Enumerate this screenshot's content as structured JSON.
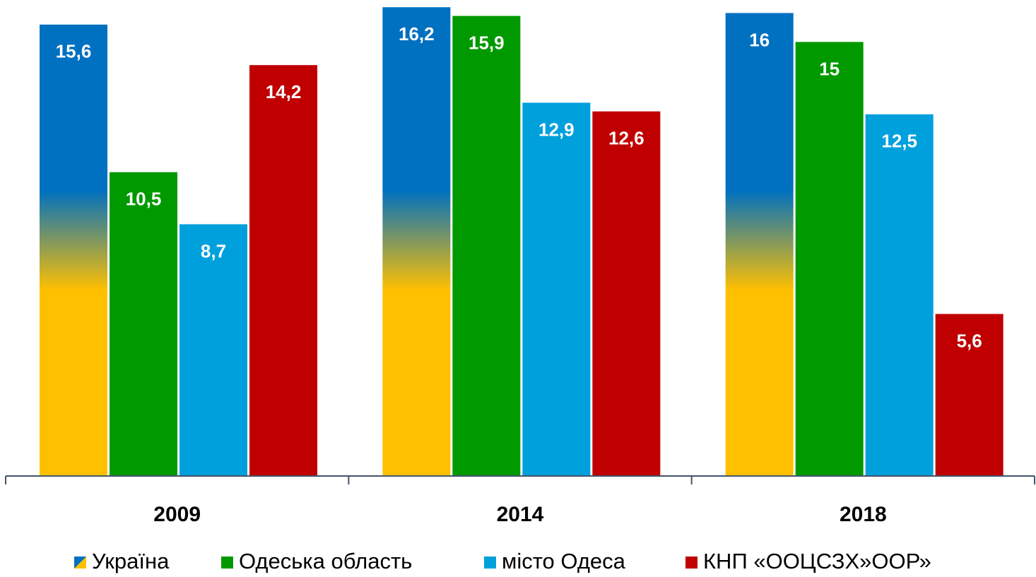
{
  "chart_data": {
    "type": "bar",
    "categories": [
      "2009",
      "2014",
      "2018"
    ],
    "ylim": [
      0,
      16.45
    ],
    "series": [
      {
        "name": "Україна",
        "color": "#0070c0",
        "gradient_color": "#ffc000",
        "values": [
          15.6,
          16.2,
          16
        ],
        "value_labels": [
          "15,6",
          "16,2",
          "16"
        ]
      },
      {
        "name": "Одеська область",
        "color": "#009900",
        "values": [
          10.5,
          15.9,
          15
        ],
        "value_labels": [
          "10,5",
          "15,9",
          "15"
        ]
      },
      {
        "name": "місто Одеса",
        "color": "#00a0dc",
        "values": [
          8.7,
          12.9,
          12.5
        ],
        "value_labels": [
          "8,7",
          "12,9",
          "12,5"
        ]
      },
      {
        "name": "КНП «ООЦСЗХ»ООР»",
        "color": "#c00000",
        "values": [
          14.2,
          12.6,
          5.6
        ],
        "value_labels": [
          "14,2",
          "12,6",
          "5,6"
        ]
      }
    ],
    "legend": "bottom"
  }
}
